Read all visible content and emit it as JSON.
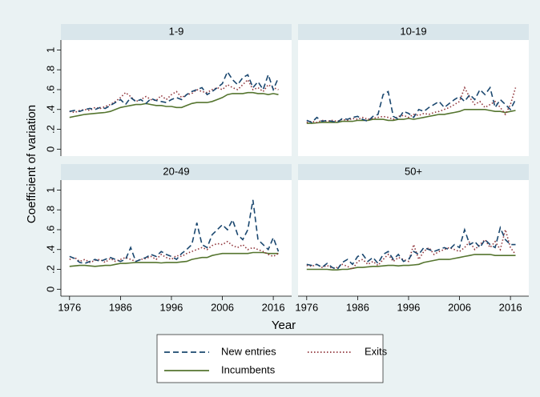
{
  "ylabel": "Coefficient of variation",
  "xlabel": "Year",
  "chart_data": [
    {
      "type": "line",
      "title": "1-9",
      "xlim": [
        1974.3,
        2019.6
      ],
      "ylim": [
        -0.07,
        1.1
      ],
      "yticks": [
        0,
        {
          "value": 0.2,
          "label": ".2"
        },
        {
          "value": 0.4,
          "label": ".4"
        },
        {
          "value": 0.6,
          "label": ".6"
        },
        {
          "value": 0.8,
          "label": ".8"
        },
        1
      ],
      "x": [
        1976,
        1977,
        1978,
        1979,
        1980,
        1981,
        1982,
        1983,
        1984,
        1985,
        1986,
        1987,
        1988,
        1989,
        1990,
        1991,
        1992,
        1993,
        1994,
        1995,
        1996,
        1997,
        1998,
        1999,
        2000,
        2001,
        2002,
        2003,
        2004,
        2005,
        2006,
        2007,
        2008,
        2009,
        2010,
        2011,
        2012,
        2013,
        2014,
        2015,
        2016,
        2017
      ],
      "series": [
        {
          "name": "New entries",
          "color": "#1a476f",
          "dash": "dashed",
          "values": [
            0.38,
            0.39,
            0.38,
            0.4,
            0.41,
            0.4,
            0.42,
            0.41,
            0.44,
            0.47,
            0.5,
            0.45,
            0.52,
            0.48,
            0.5,
            0.46,
            0.51,
            0.49,
            0.48,
            0.47,
            0.5,
            0.52,
            0.5,
            0.55,
            0.58,
            0.6,
            0.62,
            0.55,
            0.58,
            0.62,
            0.66,
            0.78,
            0.7,
            0.65,
            0.72,
            0.75,
            0.62,
            0.68,
            0.6,
            0.75,
            0.6,
            0.72
          ]
        },
        {
          "name": "Exits",
          "color": "#90353b",
          "dash": "dotted",
          "values": [
            0.38,
            0.37,
            0.39,
            0.4,
            0.39,
            0.42,
            0.41,
            0.43,
            0.45,
            0.48,
            0.52,
            0.57,
            0.53,
            0.48,
            0.5,
            0.53,
            0.5,
            0.49,
            0.54,
            0.5,
            0.55,
            0.58,
            0.52,
            0.55,
            0.56,
            0.6,
            0.58,
            0.57,
            0.6,
            0.62,
            0.6,
            0.65,
            0.62,
            0.6,
            0.65,
            0.7,
            0.6,
            0.62,
            0.58,
            0.65,
            0.62,
            0.6
          ]
        },
        {
          "name": "Incumbents",
          "color": "#55752f",
          "dash": "solid",
          "values": [
            0.32,
            0.33,
            0.34,
            0.35,
            0.355,
            0.36,
            0.365,
            0.37,
            0.38,
            0.4,
            0.42,
            0.43,
            0.44,
            0.45,
            0.45,
            0.46,
            0.45,
            0.44,
            0.44,
            0.43,
            0.43,
            0.42,
            0.42,
            0.44,
            0.46,
            0.47,
            0.47,
            0.47,
            0.48,
            0.5,
            0.52,
            0.55,
            0.56,
            0.56,
            0.56,
            0.57,
            0.57,
            0.56,
            0.56,
            0.55,
            0.56,
            0.55
          ]
        }
      ]
    },
    {
      "type": "line",
      "title": "10-19",
      "xlim": [
        1974.3,
        2019.6
      ],
      "ylim": [
        -0.07,
        1.1
      ],
      "x": [
        1976,
        1977,
        1978,
        1979,
        1980,
        1981,
        1982,
        1983,
        1984,
        1985,
        1986,
        1987,
        1988,
        1989,
        1990,
        1991,
        1992,
        1993,
        1994,
        1995,
        1996,
        1997,
        1998,
        1999,
        2000,
        2001,
        2002,
        2003,
        2004,
        2005,
        2006,
        2007,
        2008,
        2009,
        2010,
        2011,
        2012,
        2013,
        2014,
        2015,
        2016,
        2017
      ],
      "series": [
        {
          "name": "New entries",
          "color": "#1a476f",
          "dash": "dashed",
          "values": [
            0.29,
            0.27,
            0.32,
            0.28,
            0.29,
            0.28,
            0.27,
            0.31,
            0.3,
            0.32,
            0.33,
            0.3,
            0.28,
            0.33,
            0.35,
            0.55,
            0.58,
            0.33,
            0.3,
            0.38,
            0.36,
            0.32,
            0.4,
            0.38,
            0.42,
            0.45,
            0.48,
            0.42,
            0.46,
            0.5,
            0.53,
            0.48,
            0.55,
            0.5,
            0.6,
            0.55,
            0.62,
            0.42,
            0.5,
            0.45,
            0.4,
            0.5
          ]
        },
        {
          "name": "Exits",
          "color": "#90353b",
          "dash": "dotted",
          "values": [
            0.27,
            0.28,
            0.27,
            0.29,
            0.28,
            0.29,
            0.28,
            0.3,
            0.29,
            0.31,
            0.3,
            0.32,
            0.3,
            0.31,
            0.32,
            0.33,
            0.32,
            0.3,
            0.33,
            0.34,
            0.32,
            0.35,
            0.34,
            0.36,
            0.35,
            0.37,
            0.38,
            0.4,
            0.42,
            0.45,
            0.48,
            0.62,
            0.52,
            0.45,
            0.48,
            0.42,
            0.45,
            0.48,
            0.42,
            0.35,
            0.45,
            0.62
          ]
        },
        {
          "name": "Incumbents",
          "color": "#55752f",
          "dash": "solid",
          "values": [
            0.26,
            0.26,
            0.265,
            0.27,
            0.27,
            0.27,
            0.27,
            0.28,
            0.28,
            0.28,
            0.29,
            0.29,
            0.29,
            0.3,
            0.3,
            0.3,
            0.29,
            0.29,
            0.3,
            0.3,
            0.31,
            0.3,
            0.31,
            0.32,
            0.33,
            0.34,
            0.35,
            0.35,
            0.36,
            0.37,
            0.38,
            0.4,
            0.4,
            0.4,
            0.4,
            0.4,
            0.39,
            0.38,
            0.38,
            0.37,
            0.38,
            0.39
          ]
        }
      ]
    },
    {
      "type": "line",
      "title": "20-49",
      "xlim": [
        1974.3,
        2019.6
      ],
      "ylim": [
        -0.07,
        1.1
      ],
      "yticks": [
        0,
        {
          "value": 0.2,
          "label": ".2"
        },
        {
          "value": 0.4,
          "label": ".4"
        },
        {
          "value": 0.6,
          "label": ".6"
        },
        {
          "value": 0.8,
          "label": ".8"
        },
        1
      ],
      "xticks": [
        1976,
        1986,
        1996,
        2006,
        2016
      ],
      "x": [
        1976,
        1977,
        1978,
        1979,
        1980,
        1981,
        1982,
        1983,
        1984,
        1985,
        1986,
        1987,
        1988,
        1989,
        1990,
        1991,
        1992,
        1993,
        1994,
        1995,
        1996,
        1997,
        1998,
        1999,
        2000,
        2001,
        2002,
        2003,
        2004,
        2005,
        2006,
        2007,
        2008,
        2009,
        2010,
        2011,
        2012,
        2013,
        2014,
        2015,
        2016,
        2017
      ],
      "series": [
        {
          "name": "New entries",
          "color": "#1a476f",
          "dash": "dashed",
          "values": [
            0.33,
            0.31,
            0.27,
            0.26,
            0.28,
            0.3,
            0.28,
            0.3,
            0.32,
            0.3,
            0.28,
            0.3,
            0.42,
            0.28,
            0.3,
            0.32,
            0.35,
            0.33,
            0.38,
            0.35,
            0.33,
            0.3,
            0.36,
            0.4,
            0.45,
            0.67,
            0.45,
            0.42,
            0.55,
            0.6,
            0.65,
            0.6,
            0.7,
            0.55,
            0.5,
            0.6,
            0.9,
            0.5,
            0.45,
            0.4,
            0.52,
            0.38
          ]
        },
        {
          "name": "Exits",
          "color": "#90353b",
          "dash": "dotted",
          "values": [
            0.3,
            0.32,
            0.28,
            0.3,
            0.27,
            0.29,
            0.3,
            0.27,
            0.31,
            0.28,
            0.3,
            0.32,
            0.3,
            0.28,
            0.3,
            0.31,
            0.33,
            0.3,
            0.35,
            0.32,
            0.3,
            0.34,
            0.33,
            0.36,
            0.38,
            0.4,
            0.42,
            0.4,
            0.44,
            0.46,
            0.45,
            0.48,
            0.44,
            0.42,
            0.45,
            0.4,
            0.42,
            0.4,
            0.38,
            0.35,
            0.33,
            0.36
          ]
        },
        {
          "name": "Incumbents",
          "color": "#55752f",
          "dash": "solid",
          "values": [
            0.23,
            0.235,
            0.24,
            0.24,
            0.235,
            0.23,
            0.235,
            0.24,
            0.24,
            0.25,
            0.26,
            0.26,
            0.265,
            0.27,
            0.27,
            0.27,
            0.27,
            0.27,
            0.265,
            0.27,
            0.27,
            0.27,
            0.275,
            0.28,
            0.3,
            0.31,
            0.32,
            0.32,
            0.34,
            0.35,
            0.36,
            0.36,
            0.36,
            0.36,
            0.36,
            0.36,
            0.37,
            0.37,
            0.37,
            0.36,
            0.36,
            0.36
          ]
        }
      ]
    },
    {
      "type": "line",
      "title": "50+",
      "xlim": [
        1974.3,
        2019.6
      ],
      "ylim": [
        -0.07,
        1.1
      ],
      "xticks": [
        1976,
        1986,
        1996,
        2006,
        2016
      ],
      "x": [
        1976,
        1977,
        1978,
        1979,
        1980,
        1981,
        1982,
        1983,
        1984,
        1985,
        1986,
        1987,
        1988,
        1989,
        1990,
        1991,
        1992,
        1993,
        1994,
        1995,
        1996,
        1997,
        1998,
        1999,
        2000,
        2001,
        2002,
        2003,
        2004,
        2005,
        2006,
        2007,
        2008,
        2009,
        2010,
        2011,
        2012,
        2013,
        2014,
        2015,
        2016,
        2017
      ],
      "series": [
        {
          "name": "New entries",
          "color": "#1a476f",
          "dash": "dashed",
          "values": [
            0.25,
            0.24,
            0.25,
            0.22,
            0.26,
            0.22,
            0.2,
            0.27,
            0.3,
            0.25,
            0.33,
            0.35,
            0.28,
            0.32,
            0.26,
            0.35,
            0.38,
            0.3,
            0.35,
            0.28,
            0.3,
            0.38,
            0.35,
            0.42,
            0.4,
            0.38,
            0.4,
            0.42,
            0.4,
            0.45,
            0.42,
            0.6,
            0.45,
            0.48,
            0.42,
            0.5,
            0.45,
            0.42,
            0.62,
            0.5,
            0.45,
            0.45
          ]
        },
        {
          "name": "Exits",
          "color": "#90353b",
          "dash": "dotted",
          "values": [
            0.24,
            0.23,
            0.25,
            0.22,
            0.24,
            0.21,
            0.22,
            0.25,
            0.23,
            0.2,
            0.28,
            0.3,
            0.25,
            0.28,
            0.24,
            0.3,
            0.35,
            0.28,
            0.32,
            0.3,
            0.28,
            0.45,
            0.3,
            0.38,
            0.42,
            0.35,
            0.38,
            0.4,
            0.42,
            0.4,
            0.38,
            0.42,
            0.48,
            0.4,
            0.45,
            0.5,
            0.42,
            0.48,
            0.4,
            0.6,
            0.42,
            0.35
          ]
        },
        {
          "name": "Incumbents",
          "color": "#55752f",
          "dash": "solid",
          "values": [
            0.2,
            0.2,
            0.2,
            0.2,
            0.2,
            0.195,
            0.195,
            0.2,
            0.2,
            0.21,
            0.22,
            0.22,
            0.225,
            0.23,
            0.23,
            0.235,
            0.24,
            0.24,
            0.235,
            0.24,
            0.24,
            0.245,
            0.25,
            0.27,
            0.28,
            0.29,
            0.3,
            0.3,
            0.3,
            0.31,
            0.32,
            0.33,
            0.34,
            0.35,
            0.35,
            0.35,
            0.35,
            0.34,
            0.34,
            0.34,
            0.34,
            0.34
          ]
        }
      ]
    }
  ]
}
